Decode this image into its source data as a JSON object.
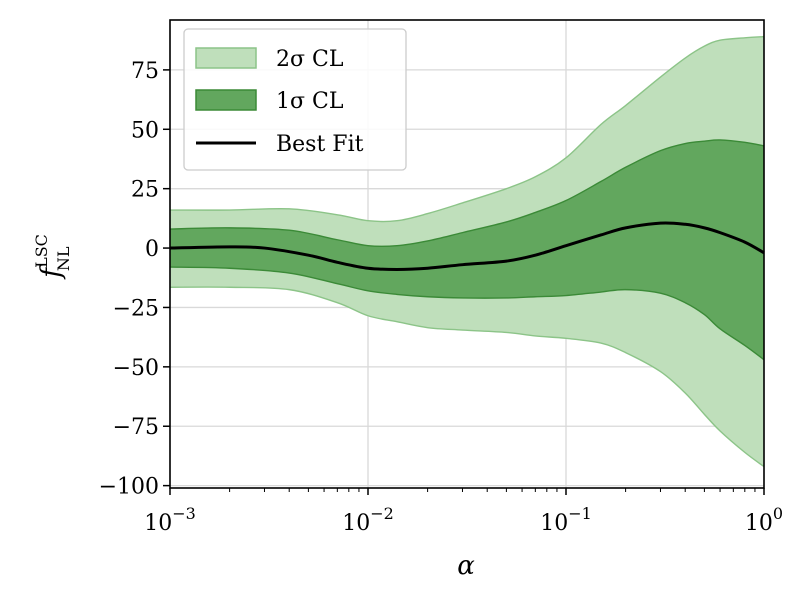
{
  "chart_data": {
    "type": "area",
    "x_scale": "log",
    "xlim": [
      0.001,
      1
    ],
    "ylim": [
      -101,
      96
    ],
    "grid": true,
    "xlabel": "α",
    "ylabel": {
      "base": "f",
      "superscript": "LSC",
      "subscript": "NL"
    },
    "x_ticks": [
      {
        "value": 0.001,
        "base": "10",
        "exp": "−3"
      },
      {
        "value": 0.01,
        "base": "10",
        "exp": "−2"
      },
      {
        "value": 0.1,
        "base": "10",
        "exp": "−1"
      },
      {
        "value": 1,
        "base": "10",
        "exp": "0"
      }
    ],
    "y_ticks": [
      {
        "value": 75,
        "label": "75"
      },
      {
        "value": 50,
        "label": "50"
      },
      {
        "value": 25,
        "label": "25"
      },
      {
        "value": 0,
        "label": "0"
      },
      {
        "value": -25,
        "label": "−25"
      },
      {
        "value": -50,
        "label": "−50"
      },
      {
        "value": -75,
        "label": "−75"
      },
      {
        "value": -100,
        "label": "−100"
      }
    ],
    "legend_position": "top-left",
    "series": [
      {
        "name": "2σ CL",
        "kind": "band",
        "color": "#bfdfbb",
        "edge_color": "#8cc488",
        "x": [
          0.001,
          0.002,
          0.004,
          0.007,
          0.01,
          0.014,
          0.02,
          0.03,
          0.05,
          0.07,
          0.1,
          0.15,
          0.2,
          0.3,
          0.4,
          0.5,
          0.6,
          0.8,
          1.0
        ],
        "upper": [
          16,
          16,
          16.5,
          14,
          11.5,
          11.5,
          14.5,
          19,
          25,
          30,
          38,
          52,
          60,
          72,
          80,
          85,
          87.5,
          88.5,
          89
        ],
        "lower": [
          -16.5,
          -16.5,
          -17.5,
          -23,
          -28.5,
          -31,
          -33.5,
          -34.5,
          -35.5,
          -37,
          -38,
          -40,
          -44,
          -52,
          -61,
          -70,
          -77,
          -86,
          -92
        ]
      },
      {
        "name": "1σ CL",
        "kind": "band",
        "color": "#62a75e",
        "edge_color": "#3b8a37",
        "x": [
          0.001,
          0.002,
          0.004,
          0.007,
          0.01,
          0.014,
          0.02,
          0.03,
          0.05,
          0.07,
          0.1,
          0.15,
          0.2,
          0.3,
          0.4,
          0.5,
          0.6,
          0.8,
          1.0
        ],
        "upper": [
          8,
          8.5,
          7.5,
          3.5,
          1,
          1,
          3,
          6.5,
          11,
          15,
          20,
          28,
          34,
          41,
          44,
          45,
          45.5,
          44.5,
          43
        ],
        "lower": [
          -8,
          -8.5,
          -10.5,
          -15,
          -18,
          -19.5,
          -20.5,
          -21,
          -21,
          -20.5,
          -20,
          -18.5,
          -17.5,
          -19,
          -23,
          -28,
          -34,
          -41,
          -47
        ]
      },
      {
        "name": "Best Fit",
        "kind": "line",
        "color": "#000000",
        "x": [
          0.001,
          0.002,
          0.003,
          0.005,
          0.007,
          0.01,
          0.014,
          0.02,
          0.03,
          0.05,
          0.07,
          0.1,
          0.15,
          0.2,
          0.3,
          0.4,
          0.5,
          0.6,
          0.8,
          1.0
        ],
        "y": [
          0,
          0.5,
          0,
          -3,
          -6,
          -8.5,
          -9,
          -8.5,
          -7,
          -5.5,
          -3,
          1,
          5.5,
          8.5,
          10.5,
          10,
          8.5,
          6.5,
          2.5,
          -2
        ]
      }
    ]
  }
}
